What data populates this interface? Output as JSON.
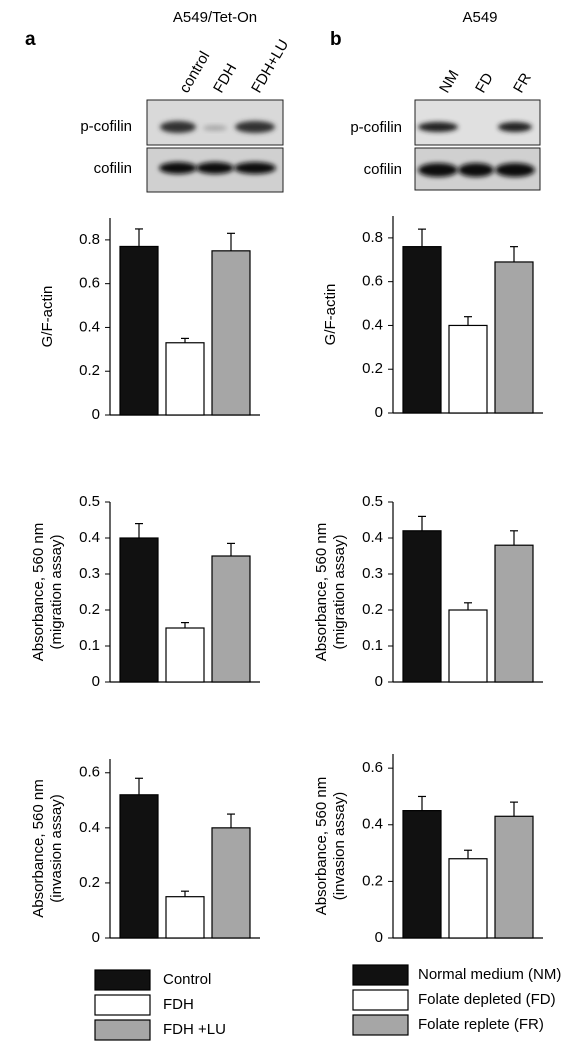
{
  "panels": [
    {
      "letter": "a",
      "title": "A549/Tet-On",
      "lanes": [
        "control",
        "FDH",
        "FDH+LU"
      ],
      "rows": [
        "p-cofilin",
        "cofilin"
      ]
    },
    {
      "letter": "b",
      "title": "A549",
      "lanes": [
        "NM",
        "FD",
        "FR"
      ],
      "rows": [
        "p-cofilin",
        "cofilin"
      ]
    }
  ],
  "chart_data": [
    {
      "type": "bar",
      "ylabel": [
        "G/F-actin"
      ],
      "categories": [
        null,
        null,
        null
      ],
      "values": [
        0.77,
        0.33,
        0.75
      ],
      "errors": [
        0.08,
        0.02,
        0.08
      ],
      "colors": [
        "#111111",
        "#ffffff",
        "#a6a6a6"
      ],
      "ylim": [
        0,
        0.9
      ],
      "yticks": [
        0,
        0.2,
        0.4,
        0.6,
        0.8
      ]
    },
    {
      "type": "bar",
      "ylabel": [
        "G/F-actin"
      ],
      "categories": [
        null,
        null,
        null
      ],
      "values": [
        0.76,
        0.4,
        0.69
      ],
      "errors": [
        0.08,
        0.04,
        0.07
      ],
      "colors": [
        "#111111",
        "#ffffff",
        "#a6a6a6"
      ],
      "ylim": [
        0,
        0.9
      ],
      "yticks": [
        0,
        0.2,
        0.4,
        0.6,
        0.8
      ]
    },
    {
      "type": "bar",
      "ylabel": [
        "Absorbance, 560 nm",
        "(migration assay)"
      ],
      "categories": [
        null,
        null,
        null
      ],
      "values": [
        0.4,
        0.15,
        0.35
      ],
      "errors": [
        0.04,
        0.015,
        0.035
      ],
      "colors": [
        "#111111",
        "#ffffff",
        "#a6a6a6"
      ],
      "ylim": [
        0,
        0.5
      ],
      "yticks": [
        0,
        0.1,
        0.2,
        0.3,
        0.4,
        0.5
      ]
    },
    {
      "type": "bar",
      "ylabel": [
        "Absorbance, 560 nm",
        "(migration assay)"
      ],
      "categories": [
        null,
        null,
        null
      ],
      "values": [
        0.42,
        0.2,
        0.38
      ],
      "errors": [
        0.04,
        0.02,
        0.04
      ],
      "colors": [
        "#111111",
        "#ffffff",
        "#a6a6a6"
      ],
      "ylim": [
        0,
        0.5
      ],
      "yticks": [
        0,
        0.1,
        0.2,
        0.3,
        0.4,
        0.5
      ]
    },
    {
      "type": "bar",
      "ylabel": [
        "Absorbance, 560 nm",
        "(invasion assay)"
      ],
      "categories": [
        null,
        null,
        null
      ],
      "values": [
        0.52,
        0.15,
        0.4
      ],
      "errors": [
        0.06,
        0.02,
        0.05
      ],
      "colors": [
        "#111111",
        "#ffffff",
        "#a6a6a6"
      ],
      "ylim": [
        0,
        0.65
      ],
      "yticks": [
        0,
        0.2,
        0.4,
        0.6
      ]
    },
    {
      "type": "bar",
      "ylabel": [
        "Absorbance, 560 nm",
        "(invasion assay)"
      ],
      "categories": [
        null,
        null,
        null
      ],
      "values": [
        0.45,
        0.28,
        0.43
      ],
      "errors": [
        0.05,
        0.03,
        0.05
      ],
      "colors": [
        "#111111",
        "#ffffff",
        "#a6a6a6"
      ],
      "ylim": [
        0,
        0.65
      ],
      "yticks": [
        0,
        0.2,
        0.4,
        0.6
      ]
    }
  ],
  "legends": [
    [
      {
        "label": "Control",
        "color": "#111111"
      },
      {
        "label": "FDH",
        "color": "#ffffff"
      },
      {
        "label": "FDH +LU",
        "color": "#a6a6a6"
      }
    ],
    [
      {
        "label": "Normal medium (NM)",
        "color": "#111111"
      },
      {
        "label": "Folate depleted (FD)",
        "color": "#ffffff"
      },
      {
        "label": "Folate replete (FR)",
        "color": "#a6a6a6"
      }
    ]
  ]
}
